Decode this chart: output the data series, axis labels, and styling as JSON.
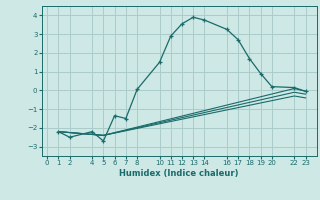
{
  "xlabel": "Humidex (Indice chaleur)",
  "ylabel": "",
  "xlim": [
    -0.5,
    24
  ],
  "ylim": [
    -3.5,
    4.5
  ],
  "xticks": [
    0,
    1,
    2,
    4,
    5,
    6,
    7,
    8,
    10,
    11,
    12,
    13,
    14,
    16,
    17,
    18,
    19,
    20,
    22,
    23
  ],
  "yticks": [
    -3,
    -2,
    -1,
    0,
    1,
    2,
    3,
    4
  ],
  "bg_color": "#cde8e5",
  "grid_color": "#aaccca",
  "line_color": "#1a6b6b",
  "line1_x": [
    1,
    2,
    4,
    5,
    6,
    7,
    8,
    10,
    11,
    12,
    13,
    14,
    16,
    17,
    18,
    19,
    20,
    22,
    23
  ],
  "line1_y": [
    -2.2,
    -2.5,
    -2.2,
    -2.7,
    -1.35,
    -1.5,
    0.05,
    1.5,
    2.9,
    3.55,
    3.9,
    3.75,
    3.25,
    2.7,
    1.7,
    0.9,
    0.2,
    0.15,
    -0.05
  ],
  "line2_x": [
    1,
    5,
    22,
    23
  ],
  "line2_y": [
    -2.2,
    -2.4,
    0.1,
    -0.05
  ],
  "line3_x": [
    1,
    5,
    22,
    23
  ],
  "line3_y": [
    -2.2,
    -2.4,
    -0.1,
    -0.2
  ],
  "line4_x": [
    1,
    5,
    22,
    23
  ],
  "line4_y": [
    -2.2,
    -2.4,
    -0.3,
    -0.4
  ]
}
